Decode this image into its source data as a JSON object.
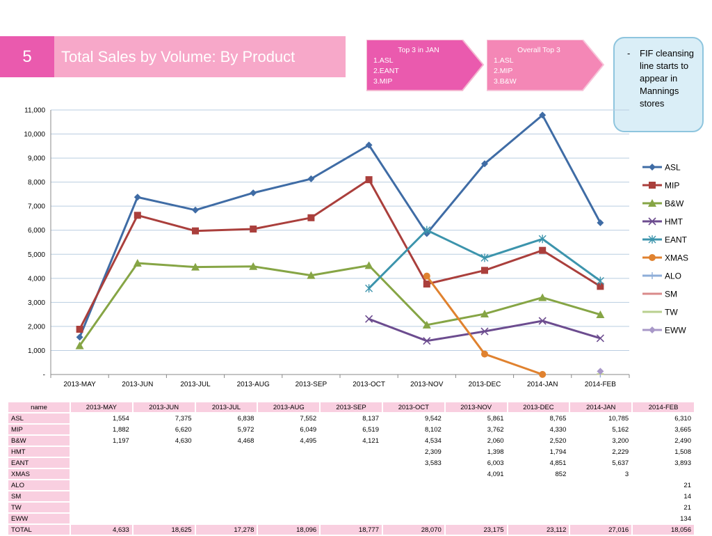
{
  "slide": {
    "number": "5",
    "title": "Total Sales by Volume: By Product"
  },
  "callouts": [
    {
      "heading": "Top 3 in JAN",
      "items": [
        "1.ASL",
        "2.EANT",
        "3.MIP"
      ],
      "color": "#ea5aae"
    },
    {
      "heading": "Overall Top 3",
      "items": [
        "1.ASL",
        "2.MIP",
        "3.B&W"
      ],
      "color": "#f487b6"
    }
  ],
  "note": {
    "bullet": "-",
    "text": "FIF cleansing line starts to appear in Mannings stores"
  },
  "chart_data": {
    "type": "line",
    "categories": [
      "2013-MAY",
      "2013-JUN",
      "2013-JUL",
      "2013-AUG",
      "2013-SEP",
      "2013-OCT",
      "2013-NOV",
      "2013-DEC",
      "2014-JAN",
      "2014-FEB"
    ],
    "ylim": [
      0,
      11000
    ],
    "yticks": [
      "-",
      "1,000",
      "2,000",
      "3,000",
      "4,000",
      "5,000",
      "6,000",
      "7,000",
      "8,000",
      "9,000",
      "10,000",
      "11,000"
    ],
    "grid": true,
    "legend_position": "right",
    "series": [
      {
        "name": "ASL",
        "color": "#3f6ca5",
        "marker": "diamond",
        "values": [
          1554,
          7375,
          6838,
          7552,
          8137,
          9542,
          5861,
          8765,
          10785,
          6310
        ]
      },
      {
        "name": "MIP",
        "color": "#aa3f3c",
        "marker": "square",
        "values": [
          1882,
          6620,
          5972,
          6049,
          6519,
          8102,
          3762,
          4330,
          5162,
          3665
        ]
      },
      {
        "name": "B&W",
        "color": "#86a545",
        "marker": "triangle",
        "values": [
          1197,
          4630,
          4468,
          4495,
          4121,
          4534,
          2060,
          2520,
          3200,
          2490
        ]
      },
      {
        "name": "HMT",
        "color": "#6c4c8f",
        "marker": "x",
        "values": [
          null,
          null,
          null,
          null,
          null,
          2309,
          1398,
          1794,
          2229,
          1508
        ]
      },
      {
        "name": "EANT",
        "color": "#3c94ac",
        "marker": "star",
        "values": [
          null,
          null,
          null,
          null,
          null,
          3583,
          6003,
          4851,
          5637,
          3893
        ]
      },
      {
        "name": "XMAS",
        "color": "#e0822f",
        "marker": "circle",
        "values": [
          null,
          null,
          null,
          null,
          null,
          null,
          4091,
          852,
          3,
          null
        ]
      },
      {
        "name": "ALO",
        "color": "#8eaed8",
        "marker": "plus",
        "values": [
          null,
          null,
          null,
          null,
          null,
          null,
          null,
          null,
          null,
          21
        ]
      },
      {
        "name": "SM",
        "color": "#d98a8a",
        "marker": "dash",
        "values": [
          null,
          null,
          null,
          null,
          null,
          null,
          null,
          null,
          null,
          14
        ]
      },
      {
        "name": "TW",
        "color": "#b9d08f",
        "marker": "dash",
        "values": [
          null,
          null,
          null,
          null,
          null,
          null,
          null,
          null,
          null,
          21
        ]
      },
      {
        "name": "EWW",
        "color": "#a898c8",
        "marker": "diamond",
        "values": [
          null,
          null,
          null,
          null,
          null,
          null,
          null,
          null,
          null,
          134
        ]
      }
    ]
  },
  "table": {
    "headers": [
      "name",
      "2013-MAY",
      "2013-JUN",
      "2013-JUL",
      "2013-AUG",
      "2013-SEP",
      "2013-OCT",
      "2013-NOV",
      "2013-DEC",
      "2014-JAN",
      "2014-FEB"
    ],
    "rows": [
      [
        "ASL",
        "1,554",
        "7,375",
        "6,838",
        "7,552",
        "8,137",
        "9,542",
        "5,861",
        "8,765",
        "10,785",
        "6,310"
      ],
      [
        "MIP",
        "1,882",
        "6,620",
        "5,972",
        "6,049",
        "6,519",
        "8,102",
        "3,762",
        "4,330",
        "5,162",
        "3,665"
      ],
      [
        "B&W",
        "1,197",
        "4,630",
        "4,468",
        "4,495",
        "4,121",
        "4,534",
        "2,060",
        "2,520",
        "3,200",
        "2,490"
      ],
      [
        "HMT",
        "",
        "",
        "",
        "",
        "",
        "2,309",
        "1,398",
        "1,794",
        "2,229",
        "1,508"
      ],
      [
        "EANT",
        "",
        "",
        "",
        "",
        "",
        "3,583",
        "6,003",
        "4,851",
        "5,637",
        "3,893"
      ],
      [
        "XMAS",
        "",
        "",
        "",
        "",
        "",
        "",
        "4,091",
        "852",
        "3",
        ""
      ],
      [
        "ALO",
        "",
        "",
        "",
        "",
        "",
        "",
        "",
        "",
        "",
        "21"
      ],
      [
        "SM",
        "",
        "",
        "",
        "",
        "",
        "",
        "",
        "",
        "",
        "14"
      ],
      [
        "TW",
        "",
        "",
        "",
        "",
        "",
        "",
        "",
        "",
        "",
        "21"
      ],
      [
        "EWW",
        "",
        "",
        "",
        "",
        "",
        "",
        "",
        "",
        "",
        "134"
      ]
    ],
    "total": [
      "TOTAL",
      "4,633",
      "18,625",
      "17,278",
      "18,096",
      "18,777",
      "28,070",
      "23,175",
      "23,112",
      "27,016",
      "18,056"
    ]
  }
}
